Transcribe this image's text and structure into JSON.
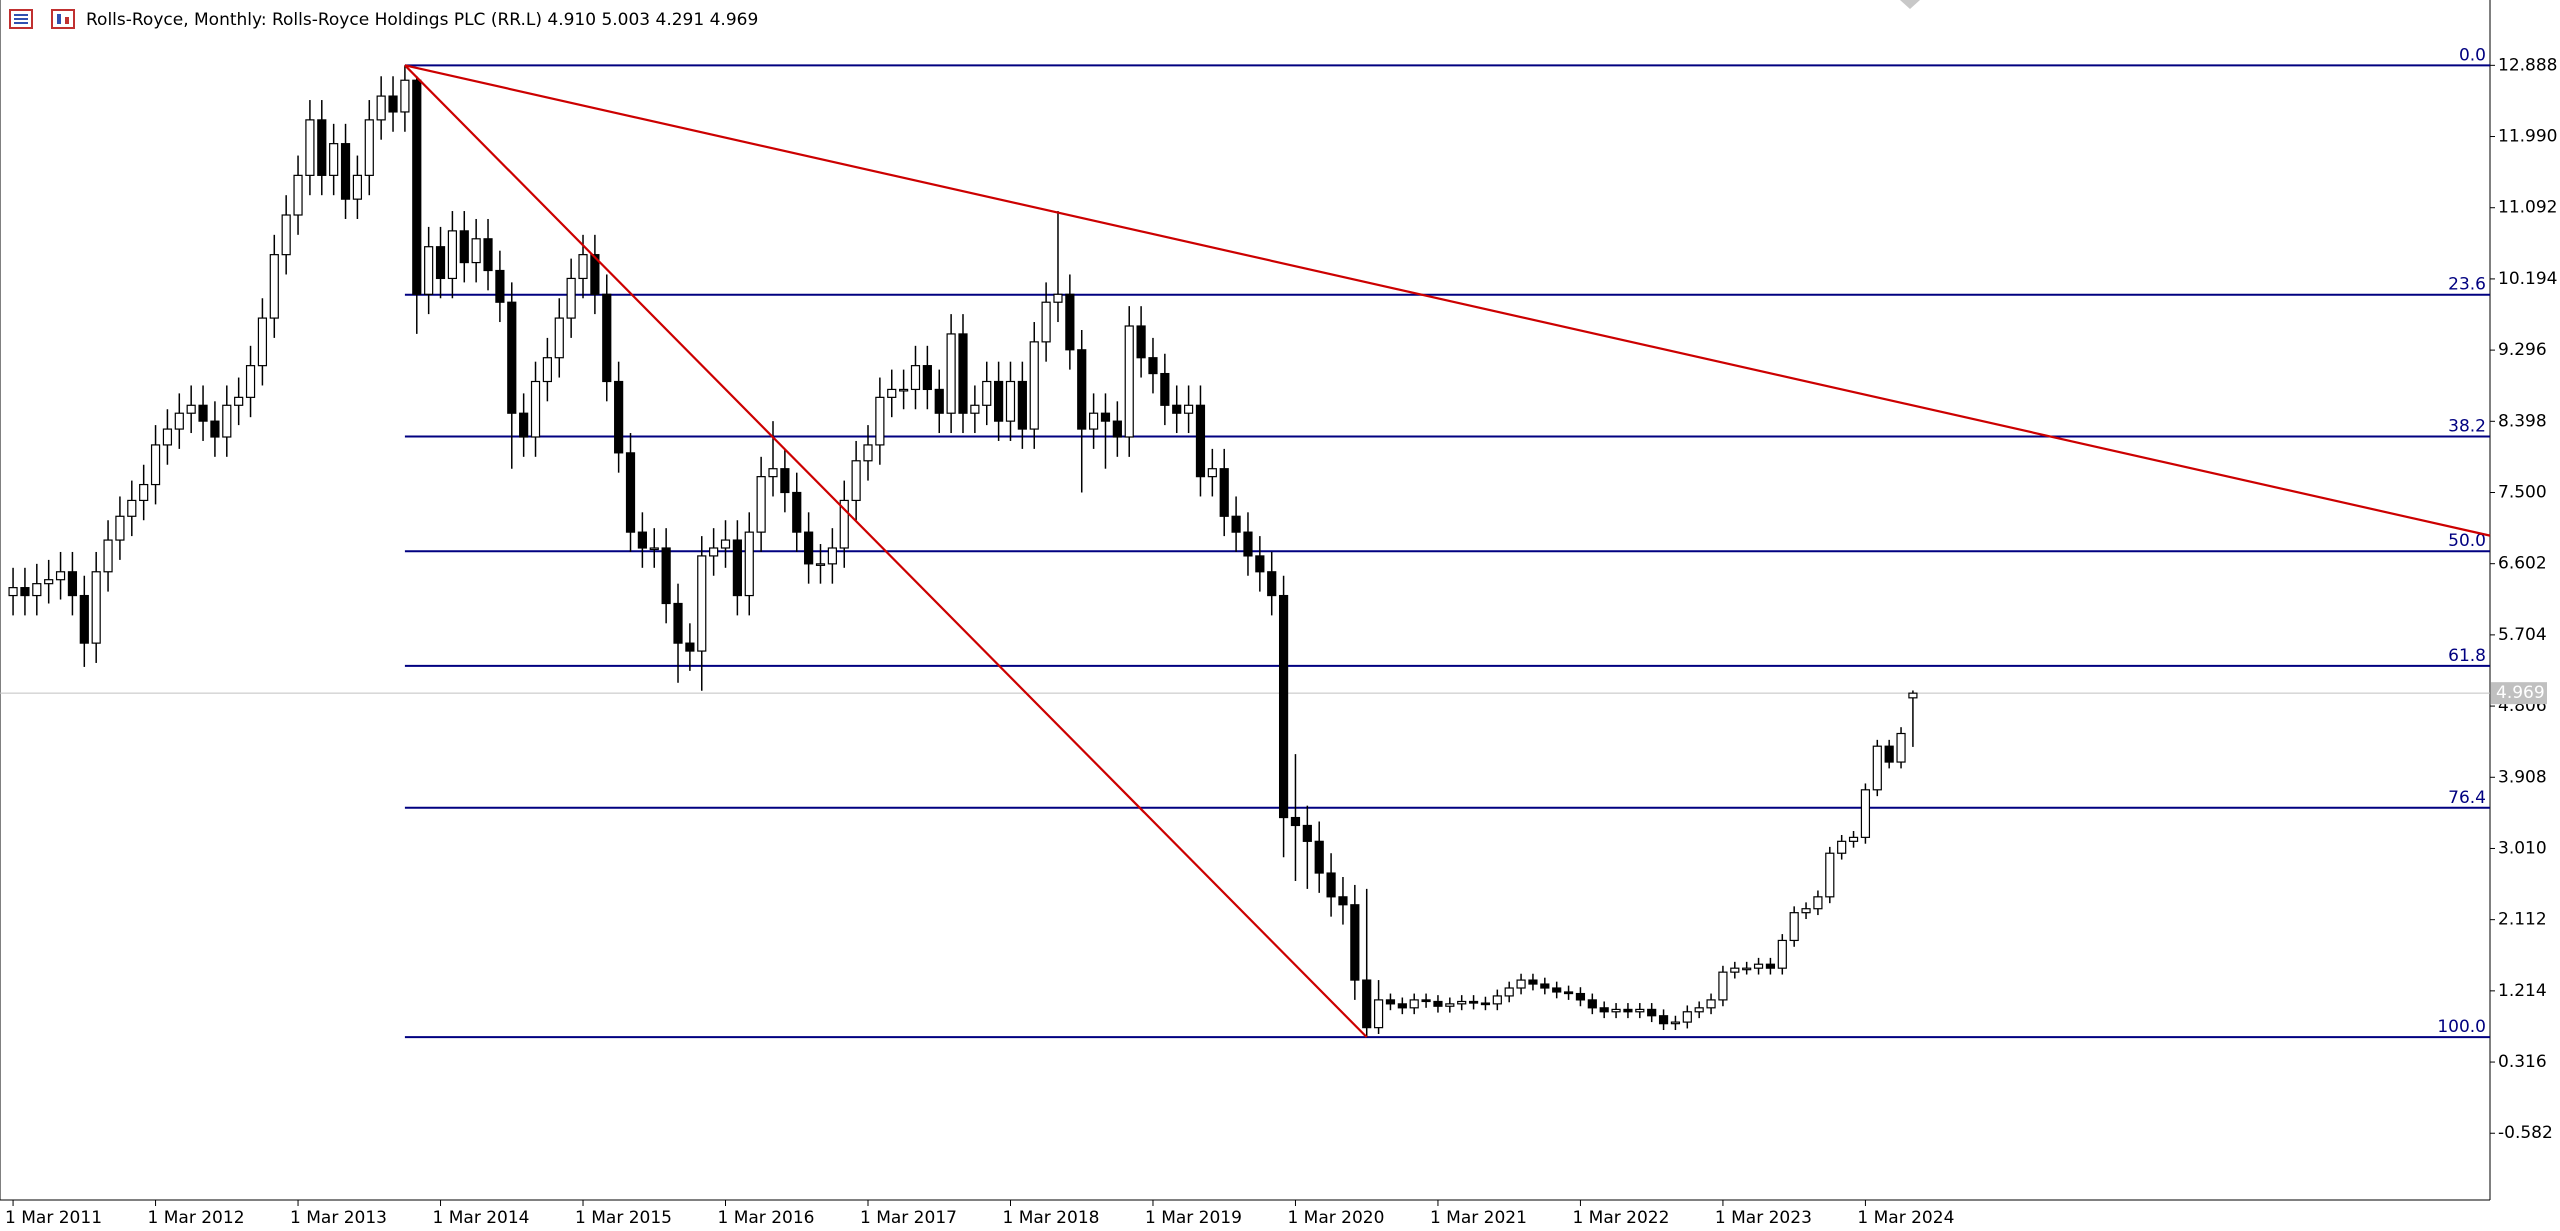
{
  "chart_data": {
    "type": "candlestick",
    "title": "Rolls-Royce, Monthly:  Rolls-Royce Holdings PLC (RR.L)  4.910 5.003 4.291 4.969",
    "xlim": [
      -1.1,
      208.6
    ],
    "ylim": [
      -1.424,
      13.712
    ],
    "xticks": [
      {
        "value": 0,
        "label": "1 Mar 2011"
      },
      {
        "value": 12,
        "label": "1 Mar 2012"
      },
      {
        "value": 24,
        "label": "1 Mar 2013"
      },
      {
        "value": 36,
        "label": "1 Mar 2014"
      },
      {
        "value": 48,
        "label": "1 Mar 2015"
      },
      {
        "value": 60,
        "label": "1 Mar 2016"
      },
      {
        "value": 72,
        "label": "1 Mar 2017"
      },
      {
        "value": 84,
        "label": "1 Mar 2018"
      },
      {
        "value": 96,
        "label": "1 Mar 2019"
      },
      {
        "value": 108,
        "label": "1 Mar 2020"
      },
      {
        "value": 120,
        "label": "1 Mar 2021"
      },
      {
        "value": 132,
        "label": "1 Mar 2022"
      },
      {
        "value": 144,
        "label": "1 Mar 2023"
      },
      {
        "value": 156,
        "label": "1 Mar 2024"
      }
    ],
    "yticks": [
      12.888,
      {
        "value": 11.99,
        "label": "11.990"
      },
      11.092,
      10.194,
      9.296,
      8.398,
      {
        "value": 7.5,
        "label": "7.500"
      },
      6.602,
      5.704,
      4.806,
      3.908,
      {
        "value": 3.01,
        "label": "3.010"
      },
      2.112,
      1.214,
      0.316,
      -0.582
    ],
    "up_color": "#ffffff",
    "down_color": "#000000",
    "open": [
      6.2,
      6.3,
      6.2,
      6.35,
      6.4,
      6.5,
      6.2,
      5.6,
      6.5,
      6.9,
      7.2,
      7.4,
      7.6,
      8.1,
      8.3,
      8.5,
      8.6,
      8.4,
      8.2,
      8.6,
      8.7,
      9.1,
      9.7,
      10.5,
      11.0,
      11.5,
      12.2,
      11.5,
      11.9,
      11.2,
      11.5,
      12.2,
      12.5,
      12.3,
      12.7,
      10.0,
      10.6,
      10.2,
      10.8,
      10.4,
      10.7,
      10.3,
      9.9,
      8.5,
      8.2,
      8.9,
      9.2,
      9.7,
      10.2,
      10.5,
      10.0,
      8.9,
      8.0,
      7.0,
      6.8,
      6.8,
      6.1,
      5.6,
      5.5,
      6.7,
      6.8,
      6.9,
      6.2,
      7.0,
      7.7,
      7.8,
      7.5,
      7.0,
      6.6,
      6.6,
      6.8,
      7.4,
      7.9,
      8.1,
      8.7,
      8.8,
      8.8,
      9.1,
      8.8,
      8.5,
      9.5,
      8.5,
      8.6,
      8.9,
      8.4,
      8.9,
      8.3,
      9.4,
      9.9,
      10.0,
      9.3,
      8.3,
      8.5,
      8.4,
      8.2,
      9.6,
      9.2,
      9.0,
      8.6,
      8.5,
      8.6,
      7.7,
      7.8,
      7.2,
      7.0,
      6.7,
      6.5,
      6.2,
      3.4,
      3.3,
      3.1,
      2.7,
      2.4,
      2.3,
      1.35,
      0.75,
      1.1,
      1.05,
      1.0,
      1.1,
      1.08,
      1.02,
      1.05,
      1.08,
      1.06,
      1.05,
      1.15,
      1.25,
      1.35,
      1.3,
      1.25,
      1.2,
      1.18,
      1.1,
      1.0,
      0.95,
      0.98,
      0.95,
      0.98,
      0.9,
      0.8,
      0.82,
      0.95,
      1.0,
      1.1,
      1.45,
      1.5,
      1.5,
      1.55,
      1.5,
      1.85,
      2.2,
      2.25,
      2.4,
      2.95,
      3.1,
      3.15,
      3.75,
      4.3,
      4.1,
      4.91
    ],
    "high": [
      6.55,
      6.55,
      6.6,
      6.65,
      6.75,
      6.75,
      6.45,
      6.75,
      7.15,
      7.45,
      7.65,
      7.85,
      8.35,
      8.55,
      8.75,
      8.85,
      8.85,
      8.65,
      8.85,
      8.95,
      9.35,
      9.95,
      10.75,
      11.25,
      11.75,
      12.45,
      12.45,
      12.15,
      12.15,
      11.75,
      12.45,
      12.75,
      12.75,
      12.888,
      12.75,
      10.85,
      10.85,
      11.05,
      11.05,
      10.95,
      10.95,
      10.55,
      10.15,
      8.75,
      9.15,
      9.45,
      9.95,
      10.45,
      10.75,
      10.75,
      10.25,
      9.15,
      8.25,
      7.25,
      7.05,
      7.05,
      6.35,
      5.85,
      6.95,
      7.05,
      7.15,
      7.15,
      7.25,
      7.95,
      8.4,
      8.05,
      7.75,
      7.25,
      6.85,
      7.05,
      7.65,
      8.15,
      8.35,
      8.95,
      9.05,
      9.05,
      9.35,
      9.35,
      9.05,
      9.75,
      9.75,
      8.85,
      9.15,
      9.15,
      9.15,
      9.15,
      9.65,
      10.15,
      11.05,
      10.25,
      9.55,
      8.75,
      8.75,
      8.65,
      9.85,
      9.85,
      9.45,
      9.25,
      8.85,
      8.85,
      8.85,
      8.05,
      8.05,
      7.45,
      7.25,
      6.95,
      6.75,
      6.45,
      4.2,
      3.55,
      3.35,
      2.95,
      2.65,
      2.55,
      2.5,
      1.35,
      1.18,
      1.13,
      1.18,
      1.18,
      1.16,
      1.13,
      1.16,
      1.16,
      1.14,
      1.23,
      1.33,
      1.43,
      1.43,
      1.38,
      1.33,
      1.28,
      1.26,
      1.18,
      1.08,
      1.06,
      1.06,
      1.06,
      1.06,
      0.98,
      0.9,
      1.03,
      1.08,
      1.18,
      1.53,
      1.58,
      1.58,
      1.63,
      1.63,
      1.93,
      2.28,
      2.33,
      2.48,
      3.03,
      3.18,
      3.23,
      3.83,
      4.38,
      4.38,
      4.54,
      5.003
    ],
    "low": [
      5.95,
      5.95,
      5.95,
      6.1,
      6.15,
      5.95,
      5.3,
      5.35,
      6.25,
      6.65,
      6.95,
      7.15,
      7.35,
      7.85,
      8.05,
      8.25,
      8.15,
      7.95,
      7.95,
      8.35,
      8.45,
      8.85,
      9.45,
      10.25,
      10.75,
      11.25,
      11.25,
      11.25,
      10.95,
      10.95,
      11.25,
      11.95,
      12.05,
      12.05,
      9.5,
      9.75,
      9.95,
      9.95,
      10.15,
      10.15,
      10.05,
      9.65,
      7.8,
      7.95,
      7.95,
      8.65,
      8.95,
      9.45,
      9.95,
      9.75,
      8.65,
      7.75,
      6.75,
      6.55,
      6.55,
      5.85,
      5.1,
      5.25,
      5.0,
      6.45,
      6.55,
      5.95,
      5.95,
      6.75,
      7.45,
      7.25,
      6.75,
      6.35,
      6.35,
      6.35,
      6.55,
      7.15,
      7.65,
      7.85,
      8.45,
      8.55,
      8.55,
      8.55,
      8.25,
      8.25,
      8.25,
      8.25,
      8.35,
      8.15,
      8.15,
      8.05,
      8.05,
      9.15,
      9.65,
      9.05,
      7.5,
      8.05,
      7.8,
      7.95,
      7.95,
      8.95,
      8.75,
      8.35,
      8.25,
      8.25,
      7.45,
      7.45,
      6.95,
      6.75,
      6.45,
      6.25,
      5.95,
      2.9,
      2.6,
      2.5,
      2.45,
      2.15,
      2.05,
      1.1,
      0.63,
      0.67,
      0.97,
      0.92,
      0.92,
      1.0,
      0.94,
      0.94,
      0.97,
      0.98,
      0.97,
      0.97,
      1.07,
      1.17,
      1.22,
      1.17,
      1.12,
      1.1,
      1.02,
      0.92,
      0.87,
      0.87,
      0.87,
      0.87,
      0.82,
      0.72,
      0.72,
      0.74,
      0.87,
      0.92,
      1.02,
      1.37,
      1.42,
      1.42,
      1.42,
      1.42,
      1.77,
      2.12,
      2.17,
      2.32,
      2.87,
      3.02,
      3.07,
      3.67,
      4.02,
      4.02,
      4.291
    ],
    "close": [
      6.3,
      6.2,
      6.35,
      6.4,
      6.5,
      6.2,
      5.6,
      6.5,
      6.9,
      7.2,
      7.4,
      7.6,
      8.1,
      8.3,
      8.5,
      8.6,
      8.4,
      8.2,
      8.6,
      8.7,
      9.1,
      9.7,
      10.5,
      11.0,
      11.5,
      12.2,
      11.5,
      11.9,
      11.2,
      11.5,
      12.2,
      12.5,
      12.3,
      12.7,
      10.0,
      10.6,
      10.2,
      10.8,
      10.4,
      10.7,
      10.3,
      9.9,
      8.5,
      8.2,
      8.9,
      9.2,
      9.7,
      10.2,
      10.5,
      10.0,
      8.9,
      8.0,
      7.0,
      6.8,
      6.8,
      6.1,
      5.6,
      5.5,
      6.7,
      6.8,
      6.9,
      6.2,
      7.0,
      7.7,
      7.8,
      7.5,
      7.0,
      6.6,
      6.6,
      6.8,
      7.4,
      7.9,
      8.1,
      8.7,
      8.8,
      8.8,
      9.1,
      8.8,
      8.5,
      9.5,
      8.5,
      8.6,
      8.9,
      8.4,
      8.9,
      8.3,
      9.4,
      9.9,
      10.0,
      9.3,
      8.3,
      8.5,
      8.4,
      8.2,
      9.6,
      9.2,
      9.0,
      8.6,
      8.5,
      8.6,
      7.7,
      7.8,
      7.2,
      7.0,
      6.7,
      6.5,
      6.2,
      3.4,
      3.3,
      3.1,
      2.7,
      2.4,
      2.3,
      1.35,
      0.75,
      1.1,
      1.05,
      1.0,
      1.1,
      1.08,
      1.02,
      1.05,
      1.08,
      1.06,
      1.05,
      1.15,
      1.25,
      1.35,
      1.3,
      1.25,
      1.2,
      1.18,
      1.1,
      1.0,
      0.95,
      0.98,
      0.95,
      0.98,
      0.9,
      0.8,
      0.82,
      0.95,
      1.0,
      1.1,
      1.45,
      1.5,
      1.5,
      1.55,
      1.5,
      1.85,
      2.2,
      2.25,
      2.4,
      2.95,
      3.1,
      3.15,
      3.75,
      4.3,
      4.1,
      4.46,
      4.969
    ],
    "last_price": 4.969,
    "fibo": {
      "x": 33,
      "color": "#000080",
      "levels": [
        {
          "label": "0.0",
          "value": 12.888
        },
        {
          "label": "23.6",
          "value": 9.995
        },
        {
          "label": "38.2",
          "value": 8.206
        },
        {
          "label": "50.0",
          "value": 6.759
        },
        {
          "label": "61.8",
          "value": 5.313
        },
        {
          "label": "76.4",
          "value": 3.523
        },
        {
          "label": "100.0",
          "value": 0.63
        }
      ]
    },
    "trendlines": [
      {
        "color": "#cc0000",
        "points": [
          [
            33,
            12.888
          ],
          [
            114,
            0.63
          ]
        ]
      },
      {
        "color": "#cc0000",
        "points": [
          [
            33,
            12.888
          ],
          [
            208.6,
            6.956
          ]
        ]
      }
    ]
  }
}
